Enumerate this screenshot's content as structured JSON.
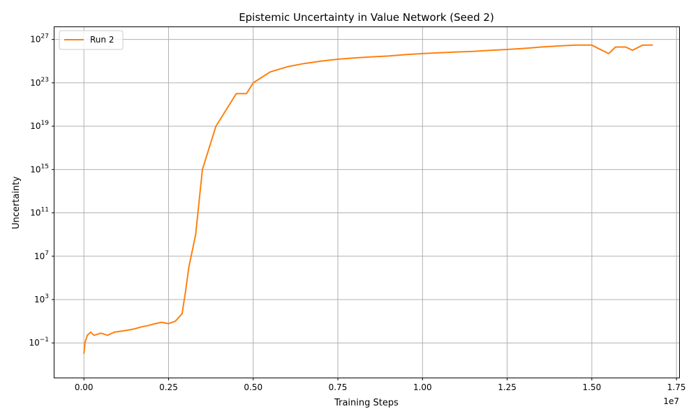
{
  "chart_data": {
    "type": "line",
    "title": "Epistemic Uncertainty in Value Network (Seed 2)",
    "xlabel": "Training Steps",
    "ylabel": "Uncertainty",
    "x_offset_label": "1e7",
    "yscale": "log",
    "grid": true,
    "legend_position": "upper-left",
    "xlim": [
      -0.087,
      1.76
    ],
    "ylim_log10": [
      -4.2,
      28.2
    ],
    "x_ticks": [
      {
        "v": 0.0,
        "label": "0.00"
      },
      {
        "v": 0.25,
        "label": "0.25"
      },
      {
        "v": 0.5,
        "label": "0.50"
      },
      {
        "v": 0.75,
        "label": "0.75"
      },
      {
        "v": 1.0,
        "label": "1.00"
      },
      {
        "v": 1.25,
        "label": "1.25"
      },
      {
        "v": 1.5,
        "label": "1.50"
      },
      {
        "v": 1.75,
        "label": "1.75"
      }
    ],
    "y_ticks": [
      {
        "exp": -1,
        "base": "10",
        "sup": "−1"
      },
      {
        "exp": 3,
        "base": "10",
        "sup": "3"
      },
      {
        "exp": 7,
        "base": "10",
        "sup": "7"
      },
      {
        "exp": 11,
        "base": "10",
        "sup": "11"
      },
      {
        "exp": 15,
        "base": "10",
        "sup": "15"
      },
      {
        "exp": 19,
        "base": "10",
        "sup": "19"
      },
      {
        "exp": 23,
        "base": "10",
        "sup": "23"
      },
      {
        "exp": 27,
        "base": "10",
        "sup": "27"
      }
    ],
    "series": [
      {
        "name": "Run 2",
        "color": "#ff7f0e",
        "x_unit": "1e7 steps",
        "points": [
          [
            0.0,
            0.01
          ],
          [
            0.003,
            0.1
          ],
          [
            0.01,
            0.5
          ],
          [
            0.02,
            1.0
          ],
          [
            0.03,
            0.5
          ],
          [
            0.05,
            0.8
          ],
          [
            0.07,
            0.5
          ],
          [
            0.09,
            1.0
          ],
          [
            0.11,
            1.2
          ],
          [
            0.13,
            1.5
          ],
          [
            0.15,
            2.0
          ],
          [
            0.17,
            3.0
          ],
          [
            0.19,
            4.0
          ],
          [
            0.21,
            6.0
          ],
          [
            0.23,
            8.0
          ],
          [
            0.25,
            6.0
          ],
          [
            0.27,
            10.0
          ],
          [
            0.29,
            50.0
          ],
          [
            0.3,
            5000.0
          ],
          [
            0.31,
            1000000.0
          ],
          [
            0.33,
            1000000000.0
          ],
          [
            0.35,
            1000000000000000.0
          ],
          [
            0.37,
            1e+17
          ],
          [
            0.39,
            1e+19
          ],
          [
            0.41,
            1e+20
          ],
          [
            0.43,
            1e+21
          ],
          [
            0.45,
            1e+22
          ],
          [
            0.48,
            1e+22
          ],
          [
            0.5,
            1e+23
          ],
          [
            0.55,
            1e+24
          ],
          [
            0.6,
            3e+24
          ],
          [
            0.65,
            6e+24
          ],
          [
            0.7,
            1e+25
          ],
          [
            0.75,
            1.5e+25
          ],
          [
            0.8,
            2e+25
          ],
          [
            0.85,
            2.5e+25
          ],
          [
            0.9,
            3e+25
          ],
          [
            0.95,
            4e+25
          ],
          [
            1.0,
            5e+25
          ],
          [
            1.05,
            6e+25
          ],
          [
            1.1,
            7e+25
          ],
          [
            1.15,
            8e+25
          ],
          [
            1.2,
            1e+26
          ],
          [
            1.25,
            1.2e+26
          ],
          [
            1.3,
            1.5e+26
          ],
          [
            1.35,
            2e+26
          ],
          [
            1.4,
            2.5e+26
          ],
          [
            1.45,
            3e+26
          ],
          [
            1.5,
            3e+26
          ],
          [
            1.53,
            1e+26
          ],
          [
            1.55,
            5e+25
          ],
          [
            1.57,
            2e+26
          ],
          [
            1.6,
            2e+26
          ],
          [
            1.62,
            1e+26
          ],
          [
            1.65,
            3e+26
          ],
          [
            1.68,
            3e+26
          ]
        ]
      }
    ]
  }
}
